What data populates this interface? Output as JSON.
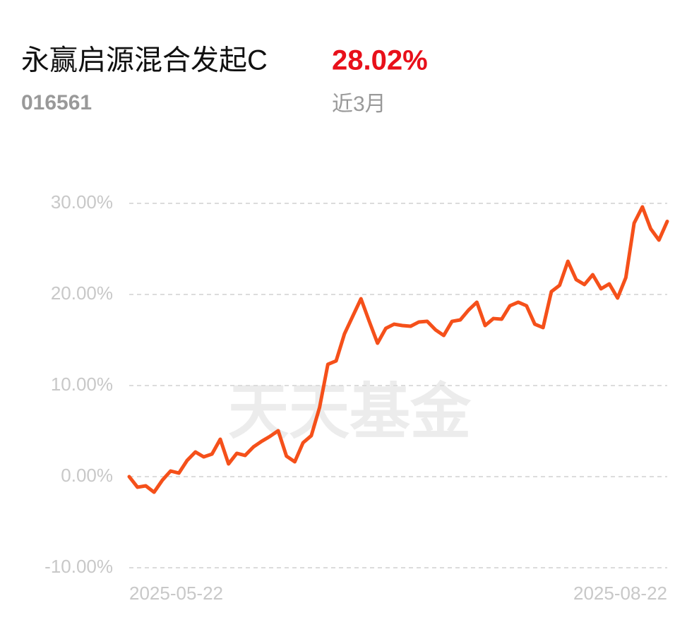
{
  "header": {
    "title": "永赢启源混合发起C",
    "return": "28.02%",
    "code": "016561",
    "period": "近3月"
  },
  "watermark": "天天基金",
  "chart_data": {
    "type": "line",
    "categories": [
      "2025-05-22",
      null,
      null,
      null,
      null,
      null,
      null,
      null,
      null,
      null,
      null,
      null,
      null,
      null,
      null,
      null,
      null,
      null,
      null,
      null,
      null,
      null,
      null,
      null,
      null,
      null,
      null,
      null,
      null,
      null,
      null,
      null,
      null,
      null,
      null,
      null,
      null,
      null,
      null,
      null,
      null,
      null,
      null,
      null,
      null,
      null,
      null,
      null,
      null,
      null,
      null,
      null,
      null,
      null,
      null,
      null,
      null,
      null,
      null,
      null,
      null,
      null,
      null,
      null,
      null,
      "2025-08-22"
    ],
    "series": [
      {
        "color": "#f5501a",
        "values": [
          0,
          -1.16,
          -1.01,
          -1.71,
          -0.39,
          0.62,
          0.39,
          1.78,
          2.71,
          2.17,
          2.48,
          4.11,
          1.4,
          2.56,
          2.33,
          3.26,
          3.88,
          4.42,
          5.04,
          2.25,
          1.63,
          3.72,
          4.5,
          7.6,
          12.33,
          12.71,
          15.66,
          17.6,
          19.53,
          17.05,
          14.65,
          16.28,
          16.74,
          16.59,
          16.51,
          16.98,
          17.05,
          16.12,
          15.5,
          17.05,
          17.21,
          18.29,
          19.15,
          16.59,
          17.36,
          17.29,
          18.76,
          19.15,
          18.76,
          16.74,
          16.36,
          20.31,
          21.01,
          23.64,
          21.63,
          21.09,
          22.17,
          20.62,
          21.16,
          19.61,
          21.86,
          27.83,
          29.61,
          27.21,
          25.97,
          28.02
        ]
      }
    ],
    "ylim": [
      -10,
      30
    ],
    "yticks": [
      {
        "value": -10,
        "label": "-10.00%"
      },
      {
        "value": 0,
        "label": "0.00%"
      },
      {
        "value": 10,
        "label": "10.00%"
      },
      {
        "value": 20,
        "label": "20.00%"
      },
      {
        "value": 30,
        "label": "30.00%"
      }
    ],
    "grid": true
  }
}
